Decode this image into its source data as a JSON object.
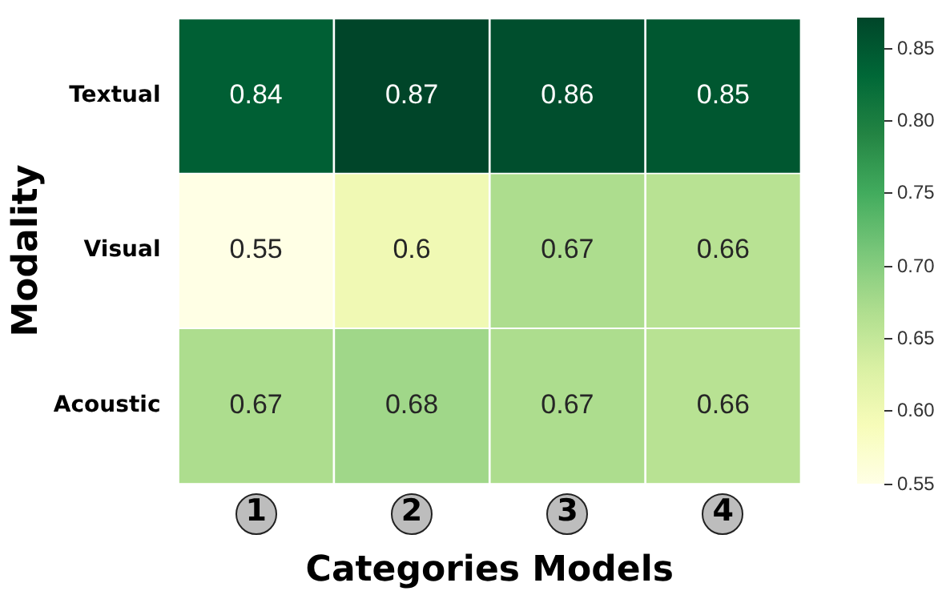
{
  "chart_data": {
    "type": "heatmap",
    "xlabel": "Categories Models",
    "ylabel": "Modality",
    "categories": [
      "1",
      "2",
      "3",
      "4"
    ],
    "y_categories": [
      "Textual",
      "Visual",
      "Acoustic"
    ],
    "cells": [
      [
        0.84,
        0.87,
        0.86,
        0.85
      ],
      [
        0.55,
        0.6,
        0.67,
        0.66
      ],
      [
        0.67,
        0.68,
        0.67,
        0.66
      ]
    ],
    "clim": [
      0.55,
      0.87
    ],
    "cticks": [
      0.55,
      {
        "value": 0.6,
        "label": "0.60"
      },
      0.65,
      {
        "value": 0.7,
        "label": "0.70"
      },
      0.75,
      {
        "value": 0.8,
        "label": "0.80"
      },
      0.85
    ],
    "data_labels": true
  }
}
